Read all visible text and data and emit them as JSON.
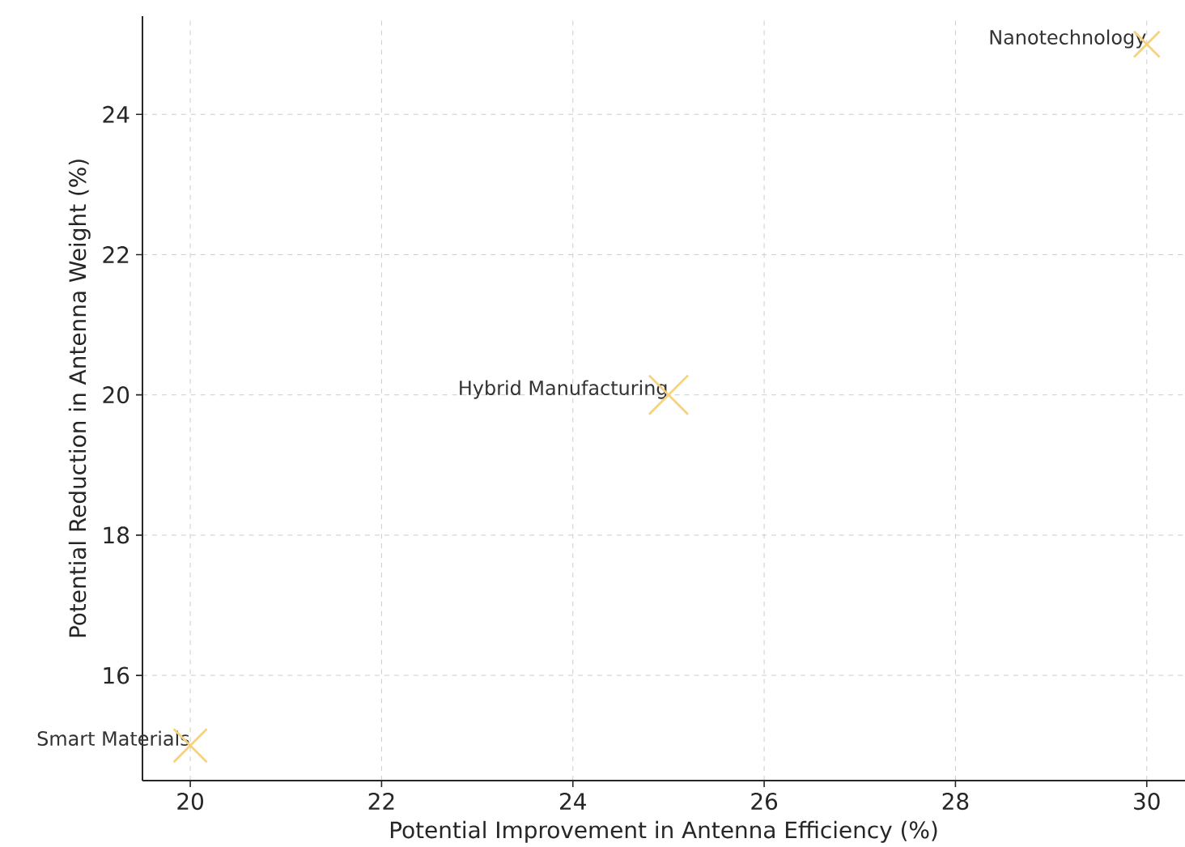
{
  "chart_data": {
    "type": "bubble",
    "xlabel": "Potential Improvement in Antenna Efficiency (%)",
    "ylabel": "Potential Reduction in Antenna Weight (%)",
    "x": [
      20,
      25,
      30
    ],
    "values": [
      15,
      20,
      25
    ],
    "sizes": [
      0.73,
      1,
      0.43
    ],
    "color": "#f7d27e",
    "marker": "cross",
    "xlim": [
      19.5,
      30.4
    ],
    "ylim": [
      14.5,
      25.4
    ],
    "xticks": [
      20,
      22,
      24,
      26,
      28,
      30
    ],
    "yticks": [
      16,
      18,
      20,
      22,
      24
    ],
    "grid": true,
    "annotations": [
      {
        "text": "Smart Materials",
        "x": 20,
        "y": 15
      },
      {
        "text": "Hybrid Manufacturing",
        "x": 25,
        "y": 20
      },
      {
        "text": "Nanotechnology",
        "x": 30,
        "y": 25
      }
    ]
  }
}
